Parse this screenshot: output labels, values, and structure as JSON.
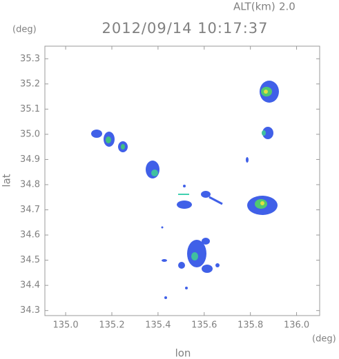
{
  "chart_data": {
    "type": "map",
    "title": "2012/09/14 10:17:37",
    "altitude_label": "ALT(km)",
    "altitude": "2.0",
    "x_label": "lon",
    "y_label": "lat",
    "x_unit": "(deg)",
    "y_unit": "(deg)",
    "xlim": [
      134.91,
      136.1
    ],
    "ylim": [
      34.28,
      35.35
    ],
    "xticks": [
      {
        "value": 135,
        "label": "135.0"
      },
      135.2,
      135.4,
      135.6,
      135.8,
      {
        "value": 136,
        "label": "136.0"
      }
    ],
    "yticks": [
      34.3,
      34.4,
      34.5,
      34.6,
      34.7,
      34.8,
      34.9,
      {
        "value": 35,
        "label": "35.0"
      },
      35.1,
      35.2,
      35.3
    ]
  }
}
